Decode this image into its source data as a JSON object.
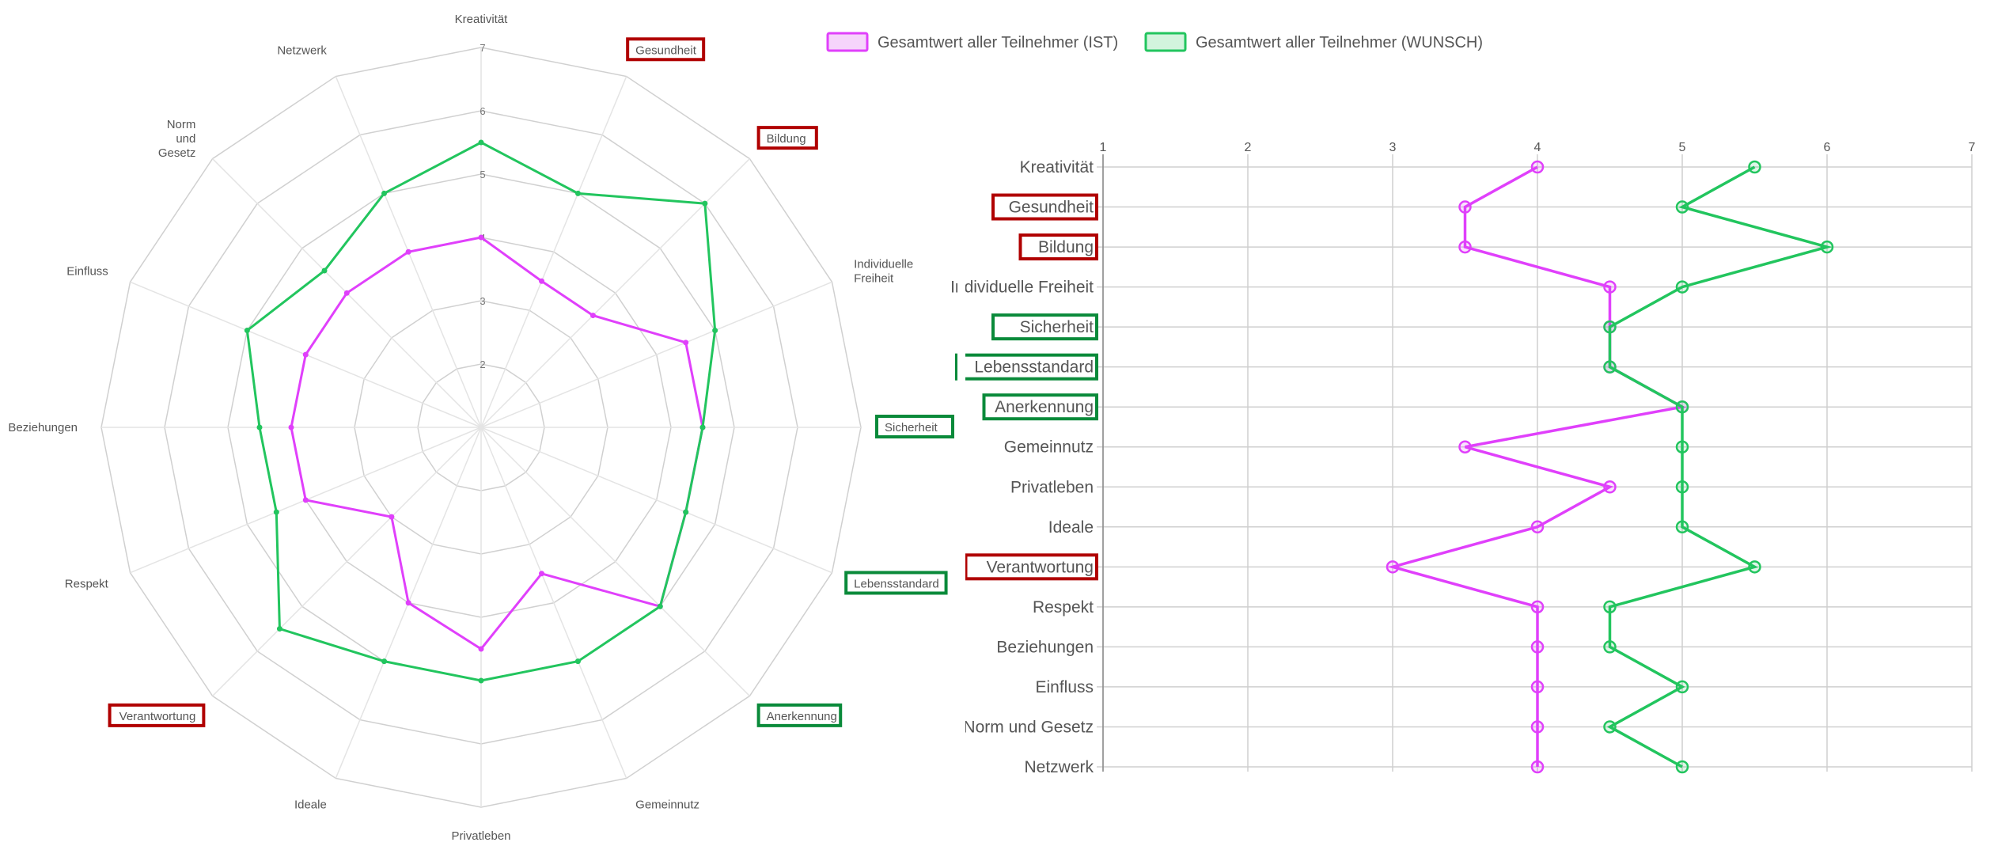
{
  "legend": {
    "ist_label": "Gesamtwert aller Teilnehmer (IST)",
    "wunsch_label": "Gesamtwert aller Teilnehmer (WUNSCH)"
  },
  "colors": {
    "ist": "#e040fb",
    "ist_fill": "#f6d4fb",
    "wunsch": "#22c55e",
    "wunsch_fill": "#d2f4dd",
    "highlight_red": "#b00000",
    "highlight_green": "#0a8a3a",
    "grid": "#d0d0d0"
  },
  "chart_data": [
    {
      "type": "radar",
      "radial_range": [
        1,
        7
      ],
      "radial_ticks": [
        "2",
        "3",
        "4",
        "5",
        "6",
        "7"
      ],
      "categories": [
        "Kreativität",
        "Gesundheit",
        "Bildung",
        "Individuelle Freiheit",
        "Sicherheit",
        "Lebensstandard",
        "Anerkennung",
        "Gemeinnutz",
        "Privatleben",
        "Ideale",
        "Verantwortung",
        "Respekt",
        "Beziehungen",
        "Einfluss",
        "Norm und Gesetz",
        "Netzwerk"
      ],
      "series": [
        {
          "name": "Gesamtwert aller Teilnehmer (IST)",
          "values": [
            4,
            3.5,
            3.5,
            4.5,
            4.5,
            4.5,
            5,
            3.5,
            4.5,
            4,
            3,
            4,
            4,
            4,
            4,
            4
          ]
        },
        {
          "name": "Gesamtwert aller Teilnehmer (WUNSCH)",
          "values": [
            5.5,
            5,
            6,
            5,
            4.5,
            4.5,
            5,
            5,
            5,
            5,
            5.5,
            4.5,
            4.5,
            5,
            4.5,
            5
          ]
        }
      ],
      "highlight_red": [
        "Gesundheit",
        "Bildung",
        "Verantwortung"
      ],
      "highlight_green": [
        "Sicherheit",
        "Lebensstandard",
        "Anerkennung"
      ]
    },
    {
      "type": "line",
      "orientation": "horizontal",
      "xlim": [
        1,
        7
      ],
      "x_ticks": [
        "1",
        "2",
        "3",
        "4",
        "5",
        "6",
        "7"
      ],
      "categories": [
        "Kreativität",
        "Gesundheit",
        "Bildung",
        "Individuelle Freiheit",
        "Sicherheit",
        "Lebensstandard",
        "Anerkennung",
        "Gemeinnutz",
        "Privatleben",
        "Ideale",
        "Verantwortung",
        "Respekt",
        "Beziehungen",
        "Einfluss",
        "Norm und Gesetz",
        "Netzwerk"
      ],
      "series": [
        {
          "name": "Gesamtwert aller Teilnehmer (IST)",
          "values": [
            4,
            3.5,
            3.5,
            4.5,
            4.5,
            4.5,
            5,
            3.5,
            4.5,
            4,
            3,
            4,
            4,
            4,
            4,
            4
          ]
        },
        {
          "name": "Gesamtwert aller Teilnehmer (WUNSCH)",
          "values": [
            5.5,
            5,
            6,
            5,
            4.5,
            4.5,
            5,
            5,
            5,
            5,
            5.5,
            4.5,
            4.5,
            5,
            4.5,
            5
          ]
        }
      ],
      "highlight_red": [
        "Gesundheit",
        "Bildung",
        "Verantwortung"
      ],
      "highlight_green": [
        "Sicherheit",
        "Lebensstandard",
        "Anerkennung"
      ],
      "grid": true,
      "legend_position": "top"
    }
  ]
}
